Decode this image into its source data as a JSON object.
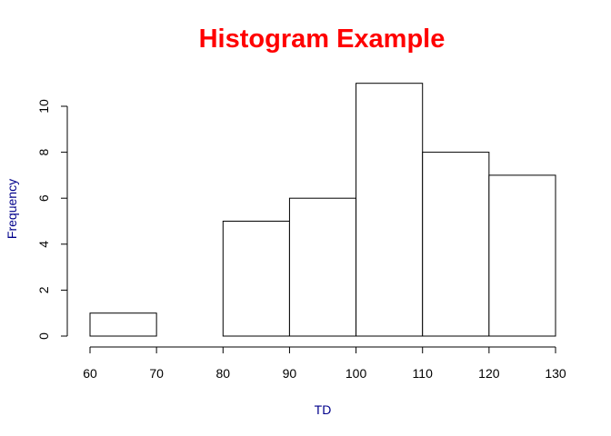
{
  "chart_data": {
    "type": "bar",
    "title": "Histogram Example",
    "xlabel": "TD",
    "ylabel": "Frequency",
    "bins": [
      {
        "start": 60,
        "end": 70,
        "count": 1
      },
      {
        "start": 70,
        "end": 80,
        "count": 0
      },
      {
        "start": 80,
        "end": 90,
        "count": 5
      },
      {
        "start": 90,
        "end": 100,
        "count": 6
      },
      {
        "start": 100,
        "end": 110,
        "count": 11
      },
      {
        "start": 110,
        "end": 120,
        "count": 8
      },
      {
        "start": 120,
        "end": 130,
        "count": 7
      }
    ],
    "xlim": [
      60,
      130
    ],
    "ylim": [
      0,
      11
    ],
    "x_ticks": [
      60,
      70,
      80,
      90,
      100,
      110,
      120,
      130
    ],
    "y_ticks": [
      0,
      2,
      4,
      6,
      8,
      10
    ],
    "grid": false,
    "legend": "none"
  },
  "colors": {
    "title": "#ff0000",
    "axis_label": "#00008b",
    "bar_fill": "#ffffff",
    "bar_stroke": "#000000"
  }
}
